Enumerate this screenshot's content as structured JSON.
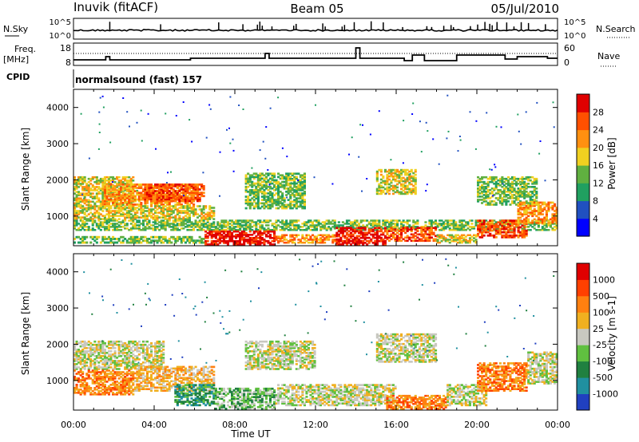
{
  "header": {
    "station": "Inuvik (fitACF)",
    "beam": "Beam 05",
    "date": "05/Jul/2010"
  },
  "top_panels": {
    "nsky_label": "N.Sky",
    "nsky_ticks": [
      "10^5",
      "10^0"
    ],
    "nsearch_label": "N.Search",
    "nsearch_ticks": [
      "10^5",
      "10^0"
    ],
    "freq_label": "Freq.",
    "freq_unit": "[MHz]",
    "freq_ticks": [
      "18",
      "8"
    ],
    "nave_label": "Nave",
    "nave_ticks": [
      "60",
      "0"
    ],
    "cpid_label": "CPID",
    "cpid_text": "normalsound (fast) 157"
  },
  "x_axis": {
    "label": "Time UT",
    "ticks": [
      "00:00",
      "04:00",
      "08:00",
      "12:00",
      "16:00",
      "20:00",
      "00:00"
    ]
  },
  "chart_data": [
    {
      "type": "heatmap",
      "name": "power",
      "ylabel": "Slant Range [km]",
      "ylim": [
        180,
        4500
      ],
      "yticks": [
        "1000",
        "2000",
        "3000",
        "4000"
      ],
      "xlim_hours": [
        0,
        24
      ],
      "colorbar": {
        "label": "Power [dB]",
        "ticks": [
          "4",
          "8",
          "12",
          "16",
          "20",
          "24",
          "28"
        ],
        "colors": [
          "#0000ff",
          "#2050c0",
          "#20a060",
          "#60b040",
          "#f0d020",
          "#ff9010",
          "#ff5000",
          "#e00000"
        ]
      },
      "regions": [
        {
          "t0": 0.0,
          "t1": 3.0,
          "r0": 1200,
          "r1": 2100,
          "level": 4
        },
        {
          "t0": 1.5,
          "t1": 6.0,
          "r0": 1300,
          "r1": 1900,
          "level": 5
        },
        {
          "t0": 3.5,
          "t1": 6.5,
          "r0": 1400,
          "r1": 1900,
          "level": 6
        },
        {
          "t0": 0.0,
          "t1": 7.0,
          "r0": 900,
          "r1": 1300,
          "level": 4
        },
        {
          "t0": 0.0,
          "t1": 24.0,
          "r0": 600,
          "r1": 900,
          "level": 3
        },
        {
          "t0": 0.0,
          "t1": 6.5,
          "r0": 250,
          "r1": 450,
          "level": 3
        },
        {
          "t0": 6.5,
          "t1": 10.0,
          "r0": 200,
          "r1": 600,
          "level": 7
        },
        {
          "t0": 10.0,
          "t1": 13.0,
          "r0": 250,
          "r1": 500,
          "level": 5
        },
        {
          "t0": 13.0,
          "t1": 15.5,
          "r0": 200,
          "r1": 700,
          "level": 7
        },
        {
          "t0": 15.5,
          "t1": 18.0,
          "r0": 300,
          "r1": 700,
          "level": 6
        },
        {
          "t0": 18.0,
          "t1": 20.0,
          "r0": 250,
          "r1": 500,
          "level": 4
        },
        {
          "t0": 20.0,
          "t1": 22.5,
          "r0": 400,
          "r1": 900,
          "level": 6
        },
        {
          "t0": 8.5,
          "t1": 11.5,
          "r0": 1200,
          "r1": 2200,
          "level": 3
        },
        {
          "t0": 15.0,
          "t1": 17.0,
          "r0": 1600,
          "r1": 2300,
          "level": 4
        },
        {
          "t0": 20.0,
          "t1": 23.0,
          "r0": 1300,
          "r1": 2100,
          "level": 3
        },
        {
          "t0": 22.0,
          "t1": 24.0,
          "r0": 800,
          "r1": 1400,
          "level": 5
        }
      ]
    },
    {
      "type": "heatmap",
      "name": "velocity",
      "ylabel": "Slant Range [km]",
      "ylim": [
        180,
        4500
      ],
      "yticks": [
        "1000",
        "2000",
        "3000",
        "4000"
      ],
      "xlim_hours": [
        0,
        24
      ],
      "colorbar": {
        "label": "Velocity [m s-1]",
        "ticks": [
          "1000",
          "500",
          "100",
          "25",
          "-25",
          "-100",
          "-500",
          "-1000"
        ],
        "colors": [
          "#2040c0",
          "#2090a0",
          "#208040",
          "#60c040",
          "#c8c8c0",
          "#f0b020",
          "#ff8010",
          "#ff4000",
          "#e00000"
        ]
      },
      "regions": [
        {
          "t0": 0.0,
          "t1": 4.5,
          "r0": 1300,
          "r1": 2100,
          "level": 4
        },
        {
          "t0": 0.0,
          "t1": 3.0,
          "r0": 600,
          "r1": 1300,
          "level": 6
        },
        {
          "t0": 3.0,
          "t1": 7.0,
          "r0": 700,
          "r1": 1400,
          "level": 5
        },
        {
          "t0": 5.0,
          "t1": 7.0,
          "r0": 300,
          "r1": 900,
          "level": 2
        },
        {
          "t0": 7.0,
          "t1": 10.0,
          "r0": 200,
          "r1": 800,
          "level": 3
        },
        {
          "t0": 10.0,
          "t1": 14.0,
          "r0": 300,
          "r1": 900,
          "level": 4
        },
        {
          "t0": 14.0,
          "t1": 16.0,
          "r0": 300,
          "r1": 900,
          "level": 4
        },
        {
          "t0": 15.5,
          "t1": 18.5,
          "r0": 200,
          "r1": 600,
          "level": 6
        },
        {
          "t0": 18.5,
          "t1": 20.5,
          "r0": 300,
          "r1": 900,
          "level": 4
        },
        {
          "t0": 20.0,
          "t1": 22.5,
          "r0": 700,
          "r1": 1500,
          "level": 6
        },
        {
          "t0": 22.5,
          "t1": 24.0,
          "r0": 900,
          "r1": 1800,
          "level": 4
        },
        {
          "t0": 8.5,
          "t1": 12.0,
          "r0": 1300,
          "r1": 2100,
          "level": 4
        },
        {
          "t0": 15.0,
          "t1": 18.0,
          "r0": 1500,
          "r1": 2300,
          "level": 4
        }
      ]
    }
  ]
}
